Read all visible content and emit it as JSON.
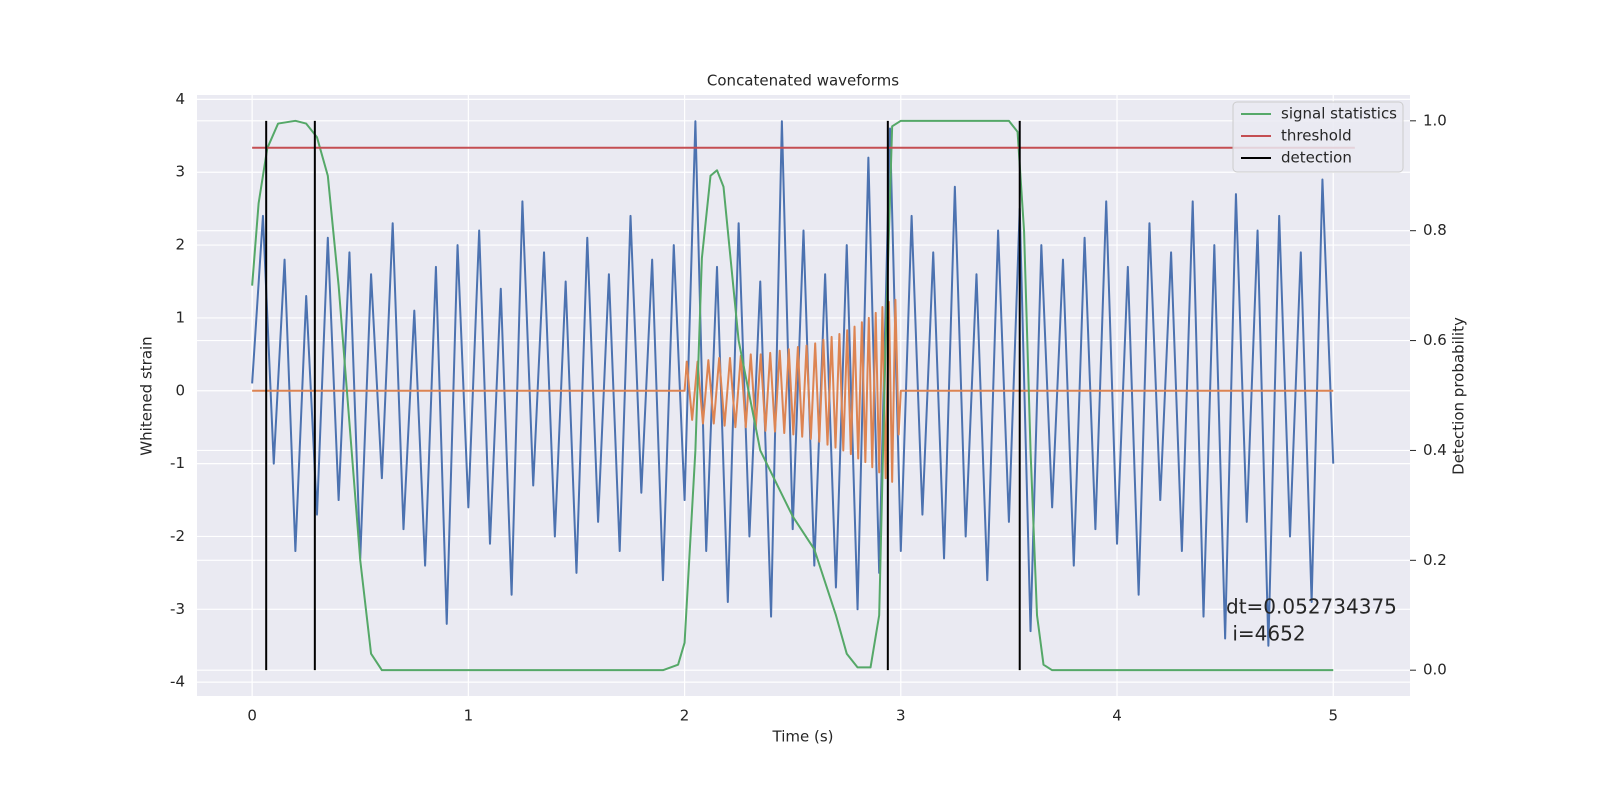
{
  "chart_data": {
    "type": "line",
    "title": "Concatenated waveforms",
    "x_label": "Time (s)",
    "y_label": "Whitened strain",
    "y2_label": "Detection probability",
    "annotation": [
      "dt=0.052734375",
      " i=4652"
    ],
    "xlim": [
      -0.255,
      5.355
    ],
    "ylim": [
      -4.19,
      4.06
    ],
    "y2lim": [
      -0.047,
      1.047
    ],
    "xticks": [
      0,
      1,
      2,
      3,
      4,
      5
    ],
    "yticks": [
      -4,
      -3,
      -2,
      -1,
      0,
      1,
      2,
      3,
      4
    ],
    "y2ticks": [
      {
        "value": 0,
        "label": "0.0"
      },
      0.2,
      0.4,
      0.6,
      0.8,
      {
        "value": 1,
        "label": "1.0"
      }
    ],
    "grid": true,
    "legend": "upper right",
    "series": [
      {
        "color": "#4c72b0",
        "axis": "y",
        "x": [
          0,
          0.05,
          0.1,
          0.15,
          0.2,
          0.25,
          0.3,
          0.35,
          0.4,
          0.45,
          0.5,
          0.55,
          0.6,
          0.65,
          0.7,
          0.75,
          0.8,
          0.85,
          0.9,
          0.95,
          1,
          1.05,
          1.1,
          1.15,
          1.2,
          1.25,
          1.3,
          1.35,
          1.4,
          1.45,
          1.5,
          1.55,
          1.6,
          1.65,
          1.7,
          1.75,
          1.8,
          1.85,
          1.9,
          1.95,
          2,
          2.05,
          2.1,
          2.15,
          2.2,
          2.25,
          2.3,
          2.35,
          2.4,
          2.45,
          2.5,
          2.55,
          2.6,
          2.65,
          2.7,
          2.75,
          2.8,
          2.85,
          2.9,
          2.95,
          3,
          3.05,
          3.1,
          3.15,
          3.2,
          3.25,
          3.3,
          3.35,
          3.4,
          3.45,
          3.5,
          3.55,
          3.6,
          3.65,
          3.7,
          3.75,
          3.8,
          3.85,
          3.9,
          3.95,
          4,
          4.05,
          4.1,
          4.15,
          4.2,
          4.25,
          4.3,
          4.35,
          4.4,
          4.45,
          4.5,
          4.55,
          4.6,
          4.65,
          4.7,
          4.75,
          4.8,
          4.85,
          4.9,
          4.95,
          5
        ],
        "values": [
          0.1,
          2.4,
          -1.0,
          1.8,
          -2.2,
          1.3,
          -1.7,
          2.1,
          -1.5,
          1.9,
          -2.3,
          1.6,
          -1.2,
          2.3,
          -1.9,
          1.1,
          -2.4,
          1.7,
          -3.2,
          2.0,
          -1.6,
          2.2,
          -2.1,
          1.4,
          -2.8,
          2.6,
          -1.3,
          1.9,
          -2.0,
          1.5,
          -2.5,
          2.1,
          -1.8,
          1.6,
          -2.2,
          2.4,
          -1.4,
          1.8,
          -2.6,
          2.0,
          -1.5,
          3.7,
          -2.2,
          1.7,
          -2.9,
          2.3,
          -2.0,
          1.5,
          -3.1,
          3.7,
          -1.9,
          2.2,
          -2.4,
          1.6,
          -2.7,
          2.0,
          -3.0,
          3.2,
          -2.5,
          3.6,
          -2.2,
          2.4,
          -1.7,
          1.9,
          -2.3,
          2.8,
          -2.0,
          1.6,
          -2.6,
          2.2,
          -1.8,
          2.5,
          -3.3,
          2.0,
          -1.6,
          1.8,
          -2.4,
          2.1,
          -1.9,
          2.6,
          -2.1,
          1.7,
          -2.8,
          2.3,
          -1.5,
          1.9,
          -2.2,
          2.6,
          -3.1,
          2.0,
          -3.4,
          2.7,
          -1.8,
          2.2,
          -3.5,
          2.4,
          -2.0,
          1.9,
          -2.9,
          2.9,
          -1.0
        ]
      },
      {
        "color": "#dd8452",
        "axis": "y",
        "x": [
          0,
          2.0,
          2.01,
          2.035,
          2.06,
          2.085,
          2.11,
          2.135,
          2.16,
          2.185,
          2.21,
          2.235,
          2.26,
          2.283,
          2.306,
          2.329,
          2.352,
          2.374,
          2.396,
          2.418,
          2.44,
          2.461,
          2.482,
          2.503,
          2.524,
          2.544,
          2.564,
          2.584,
          2.604,
          2.623,
          2.642,
          2.661,
          2.68,
          2.698,
          2.716,
          2.734,
          2.752,
          2.769,
          2.786,
          2.803,
          2.82,
          2.836,
          2.852,
          2.868,
          2.884,
          2.9,
          2.915,
          2.93,
          2.945,
          2.96,
          2.975,
          2.99,
          3.0,
          5.0
        ],
        "values": [
          0,
          0,
          0.4,
          -0.4,
          0.4,
          -0.45,
          0.42,
          -0.45,
          0.45,
          -0.48,
          0.45,
          -0.5,
          0.48,
          -0.5,
          0.5,
          -0.52,
          0.5,
          -0.55,
          0.52,
          -0.56,
          0.55,
          -0.58,
          0.57,
          -0.6,
          0.6,
          -0.63,
          0.62,
          -0.66,
          0.65,
          -0.7,
          0.7,
          -0.74,
          0.74,
          -0.78,
          0.78,
          -0.82,
          0.83,
          -0.87,
          0.88,
          -0.93,
          0.94,
          -0.98,
          1.0,
          -1.05,
          1.07,
          -1.12,
          1.15,
          -1.2,
          1.22,
          -1.25,
          1.25,
          -0.6,
          0,
          0
        ]
      },
      {
        "name": "signal statistics",
        "color": "#55a868",
        "axis": "y2",
        "x": [
          0,
          0.03,
          0.07,
          0.12,
          0.2,
          0.25,
          0.3,
          0.35,
          0.4,
          0.45,
          0.5,
          0.55,
          0.6,
          1.9,
          1.97,
          2.0,
          2.05,
          2.08,
          2.12,
          2.15,
          2.18,
          2.25,
          2.35,
          2.5,
          2.6,
          2.7,
          2.75,
          2.8,
          2.86,
          2.9,
          2.93,
          2.96,
          3.0,
          3.5,
          3.54,
          3.57,
          3.6,
          3.63,
          3.66,
          3.7,
          5.0
        ],
        "values": [
          0.7,
          0.85,
          0.95,
          0.995,
          1.0,
          0.995,
          0.97,
          0.9,
          0.7,
          0.45,
          0.2,
          0.03,
          0.0,
          0.0,
          0.01,
          0.05,
          0.4,
          0.75,
          0.9,
          0.91,
          0.88,
          0.6,
          0.4,
          0.28,
          0.22,
          0.1,
          0.03,
          0.005,
          0.005,
          0.1,
          0.6,
          0.99,
          1.0,
          1.0,
          0.98,
          0.8,
          0.4,
          0.1,
          0.01,
          0.0,
          0.0
        ]
      },
      {
        "name": "threshold",
        "color": "#c44e52",
        "axis": "y2",
        "x": [
          0,
          5.1
        ],
        "values": [
          0.951,
          0.951
        ]
      },
      {
        "name": "detection",
        "color": "#000000",
        "axis": "y2",
        "type": "vlines",
        "x": [
          0.065,
          0.29,
          2.94,
          3.55
        ],
        "ymin": 0,
        "ymax": 1
      }
    ]
  }
}
